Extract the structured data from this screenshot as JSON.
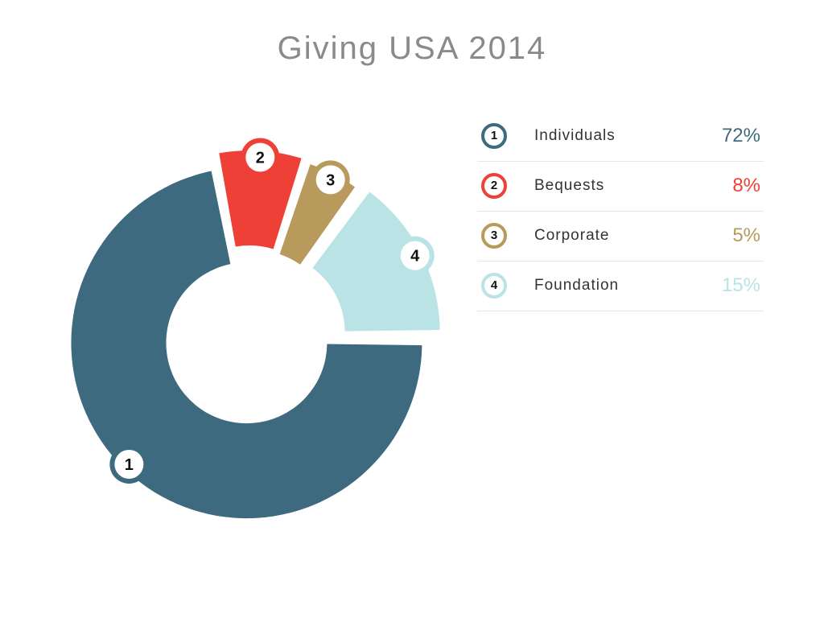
{
  "chart_data": {
    "type": "pie",
    "title": "Giving USA 2014",
    "categories": [
      "Individuals",
      "Bequests",
      "Corporate",
      "Foundation"
    ],
    "markers": [
      "1",
      "2",
      "3",
      "4"
    ],
    "values": [
      72,
      8,
      5,
      15
    ],
    "value_labels": [
      "72%",
      "8%",
      "5%",
      "15%"
    ],
    "colors": [
      "#3d6a7f",
      "#ee4036",
      "#b89a5c",
      "#b9e3e5"
    ],
    "donut": true,
    "legend": "right"
  }
}
